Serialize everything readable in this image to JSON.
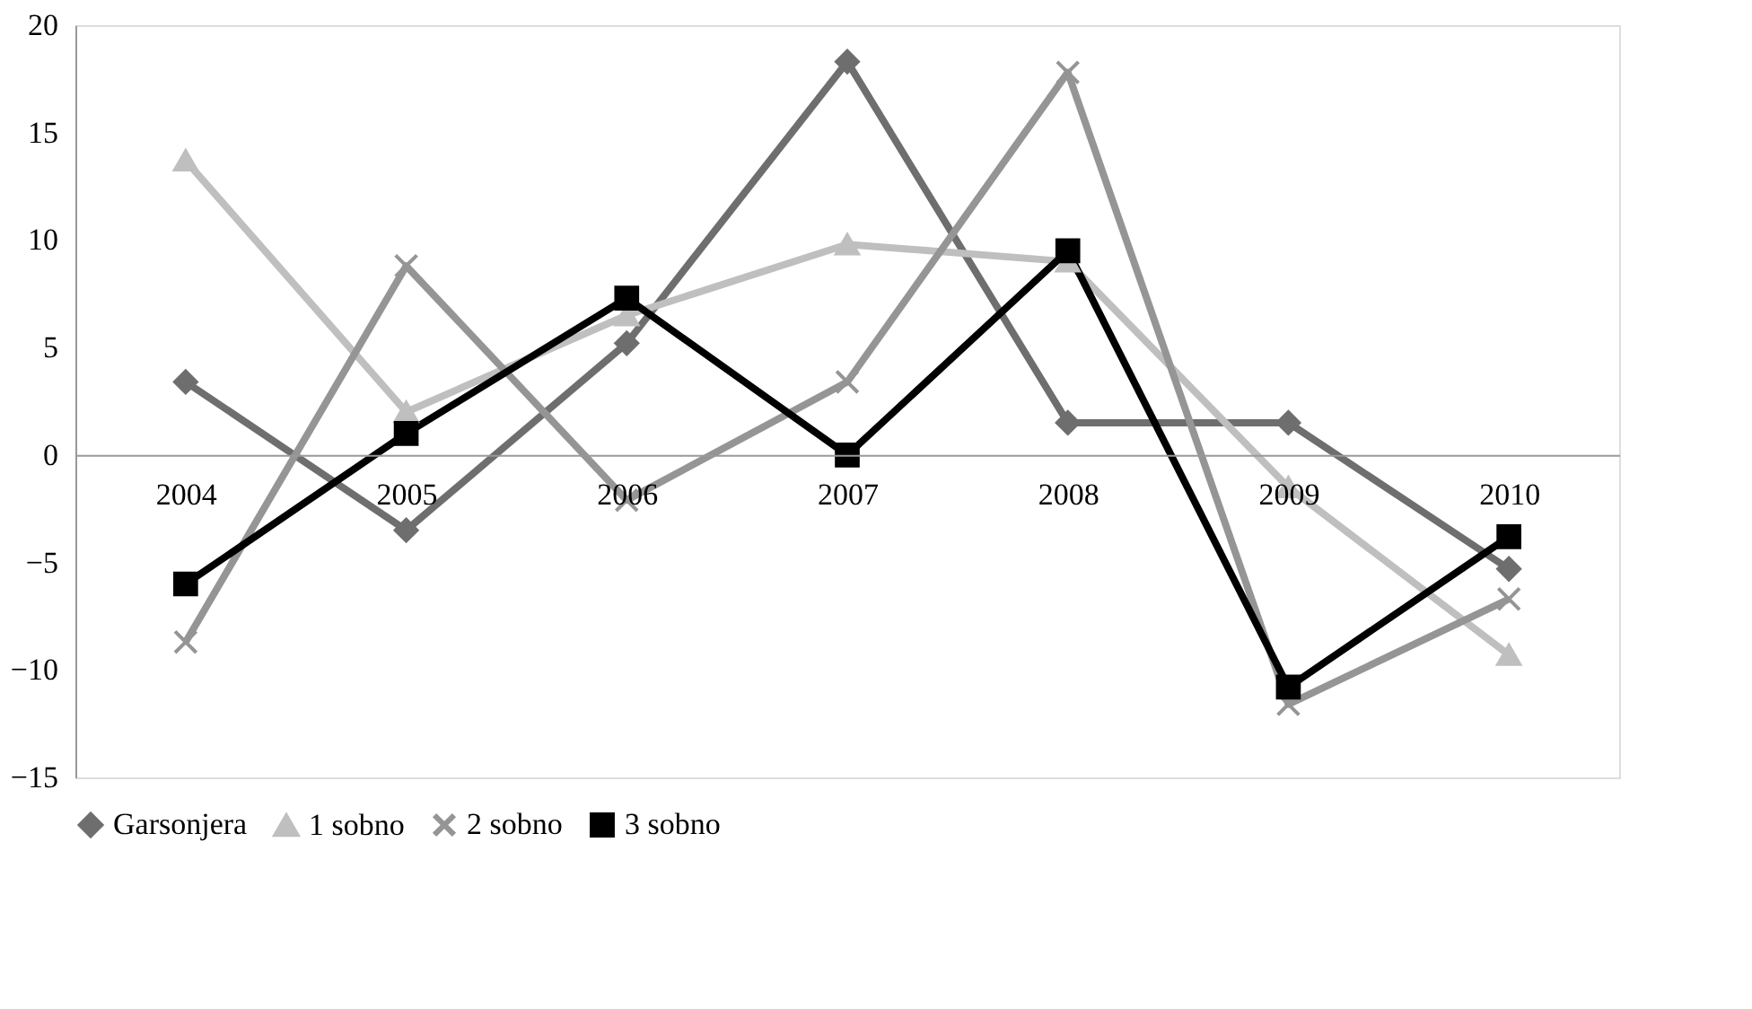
{
  "chart_data": {
    "type": "line",
    "categories": [
      "2004",
      "2005",
      "2006",
      "2007",
      "2008",
      "2009",
      "2010"
    ],
    "ylim": [
      -15,
      20
    ],
    "yticks": [
      -15,
      -10,
      -5,
      0,
      5,
      10,
      15,
      20
    ],
    "grid": false,
    "legend": "bottom",
    "series": [
      {
        "name": "Garsonjera",
        "color": "#6e6e6e",
        "marker": "diamond",
        "values": [
          3.4,
          -3.5,
          5.2,
          18.3,
          1.5,
          1.5,
          -5.3
        ]
      },
      {
        "name": "1 sobno",
        "color": "#bfbfbf",
        "marker": "triangle",
        "values": [
          13.7,
          2.0,
          6.5,
          9.8,
          9.0,
          -1.5,
          -9.3
        ]
      },
      {
        "name": "2 sobno",
        "color": "#959595",
        "marker": "cross",
        "values": [
          -8.7,
          8.8,
          -2.1,
          3.4,
          17.8,
          -11.6,
          -6.7
        ]
      },
      {
        "name": "3 sobno",
        "color": "#000000",
        "marker": "square",
        "values": [
          -6.0,
          1.0,
          7.3,
          0,
          9.5,
          -10.8,
          -3.8
        ]
      }
    ]
  }
}
